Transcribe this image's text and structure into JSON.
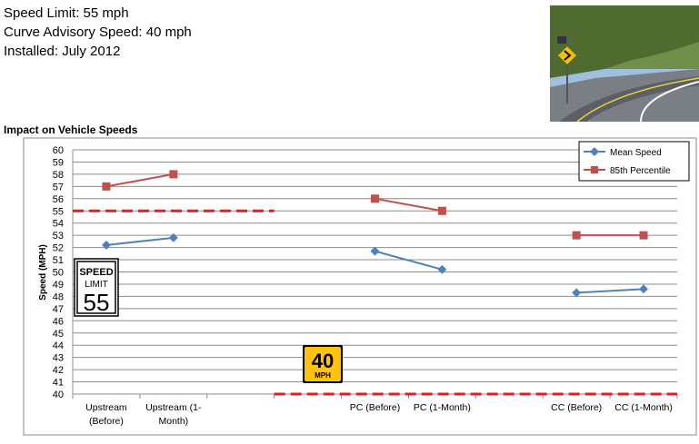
{
  "info": {
    "line1": "Speed Limit: 55 mph",
    "line2": "Curve Advisory Speed: 40 mph",
    "line3": "Installed: July 2012"
  },
  "section_title": "Impact on Vehicle Speeds",
  "signs": {
    "speed_limit": {
      "top": "SPEED",
      "mid": "LIMIT",
      "value": "55"
    },
    "advisory": {
      "value": "40",
      "unit": "MPH"
    }
  },
  "colors": {
    "mean": "#4f81bd",
    "p85": "#c0504d",
    "ref_line": "#e02020",
    "advisory_sign": "#ffc20e"
  },
  "chart_data": {
    "type": "line",
    "title": "Impact on Vehicle Speeds",
    "ylabel": "Speed (MPH)",
    "xlabel": "",
    "ylim": [
      40,
      60
    ],
    "yticks": [
      40,
      41,
      42,
      43,
      44,
      45,
      46,
      47,
      48,
      49,
      50,
      51,
      52,
      53,
      54,
      55,
      56,
      57,
      58,
      59,
      60
    ],
    "grid": true,
    "legend_position": "top-right",
    "categories": [
      [
        "Upstream",
        "(Before)"
      ],
      [
        "Upstream (1-",
        "Month)"
      ],
      [
        ""
      ],
      [
        ""
      ],
      [
        "PC (Before)"
      ],
      [
        "PC (1-Month)"
      ],
      [
        ""
      ],
      [
        "CC (Before)"
      ],
      [
        "CC (1-Month)"
      ]
    ],
    "series": [
      {
        "name": "Mean Speed",
        "marker": "diamond",
        "values": [
          52.2,
          52.8,
          null,
          null,
          51.7,
          50.2,
          null,
          48.3,
          48.6
        ]
      },
      {
        "name": "85th Percentile",
        "marker": "square",
        "values": [
          57,
          58,
          null,
          null,
          56,
          55,
          null,
          53,
          53
        ]
      }
    ],
    "reference_lines": [
      {
        "value": 55,
        "from_category": 0,
        "to_category": 2
      },
      {
        "value": 40,
        "from_category": 3,
        "to_category": 8
      }
    ]
  }
}
